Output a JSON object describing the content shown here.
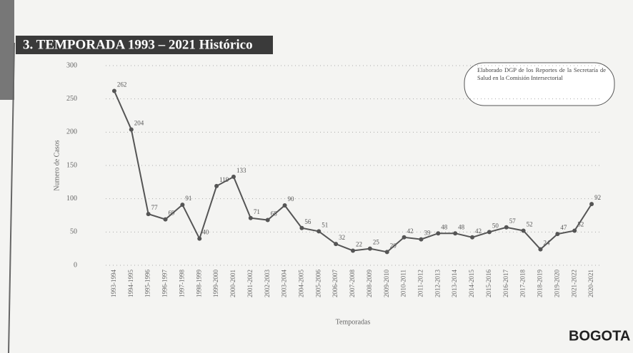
{
  "chart_data": {
    "type": "line",
    "title": "3. TEMPORADA 1993 – 2021 Histórico",
    "ylabel": "Numero de Casos",
    "xlabel": "Temporadas",
    "note": "Elaborado DGP de los Reportes de la Secretaría de Salud en la Comisión Intersectorial",
    "logo": "BOGOTA",
    "categories": [
      "1993-1994",
      "1994-1995",
      "1995-1996",
      "1996-1997",
      "1997-1998",
      "1998-1999",
      "1999-2000",
      "2000-2001",
      "2001-2002",
      "2002-2003",
      "2003-2004",
      "2004-2005",
      "2005-2006",
      "2006-2007",
      "2007-2008",
      "2008-2009",
      "2009-2010",
      "2010-2011",
      "2011-2012",
      "2012-2013",
      "2013-2014",
      "2014-2015",
      "2015-2016",
      "2016-2017",
      "2017-2018",
      "2018-2019",
      "2019-2020",
      "2021-2022",
      "2020-2021"
    ],
    "series": [
      {
        "name": "Casos",
        "color": "#555555",
        "values": [
          262,
          204,
          77,
          69,
          91,
          40,
          119,
          133,
          71,
          68,
          90,
          56,
          51,
          32,
          22,
          25,
          20,
          42,
          39,
          48,
          48,
          42,
          50,
          57,
          52,
          24,
          47,
          52,
          92
        ]
      }
    ],
    "ylim": [
      0,
      300
    ],
    "yticks": [
      0,
      50,
      100,
      150,
      200,
      250,
      300
    ],
    "grid": true
  }
}
